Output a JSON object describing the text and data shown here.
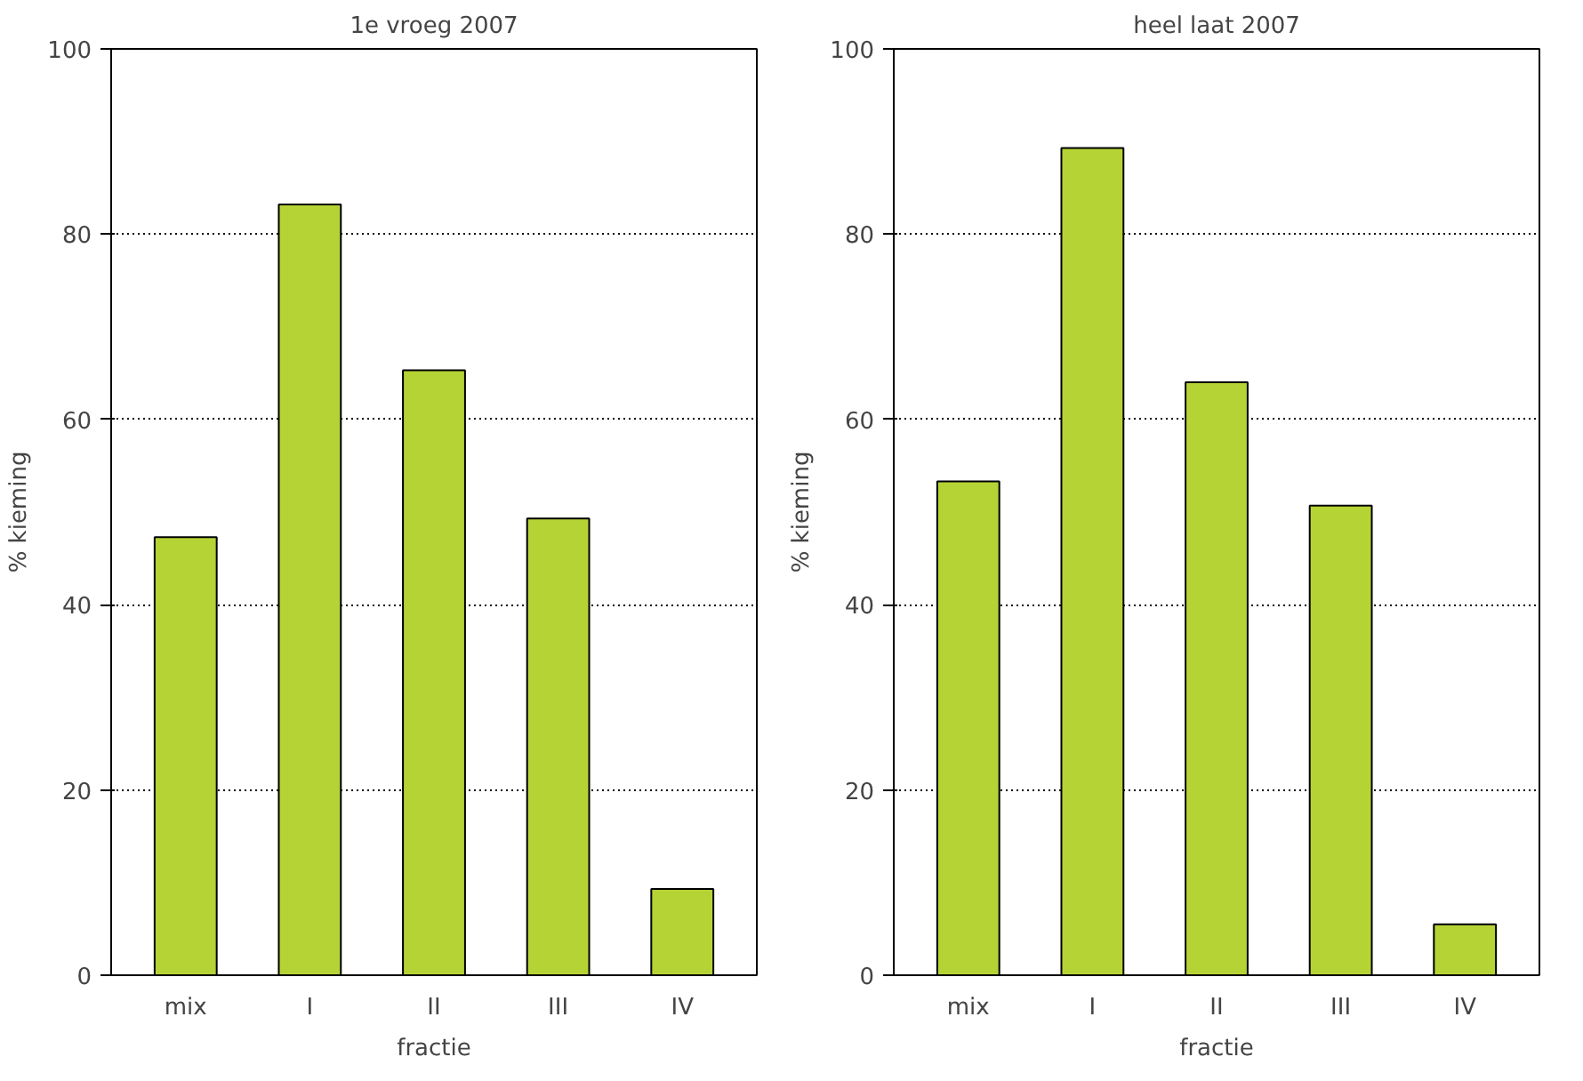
{
  "chart_data": [
    {
      "type": "bar",
      "title": "1e vroeg 2007",
      "xlabel": "fractie",
      "ylabel": "% kieming",
      "categories": [
        "mix",
        "I",
        "II",
        "III",
        "IV"
      ],
      "values": [
        47.3,
        83.2,
        65.3,
        49.3,
        9.3
      ],
      "color": "#b5d334",
      "ylim": [
        0,
        100
      ],
      "yticks": [
        0,
        20,
        40,
        60,
        80,
        100
      ],
      "grid": "y"
    },
    {
      "type": "bar",
      "title": "heel laat 2007",
      "xlabel": "fractie",
      "ylabel": "% kieming",
      "categories": [
        "mix",
        "I",
        "II",
        "III",
        "IV"
      ],
      "values": [
        53.3,
        89.3,
        64.0,
        50.7,
        5.5
      ],
      "color": "#b5d334",
      "ylim": [
        0,
        100
      ],
      "yticks": [
        0,
        20,
        40,
        60,
        80,
        100
      ],
      "grid": "y"
    }
  ]
}
